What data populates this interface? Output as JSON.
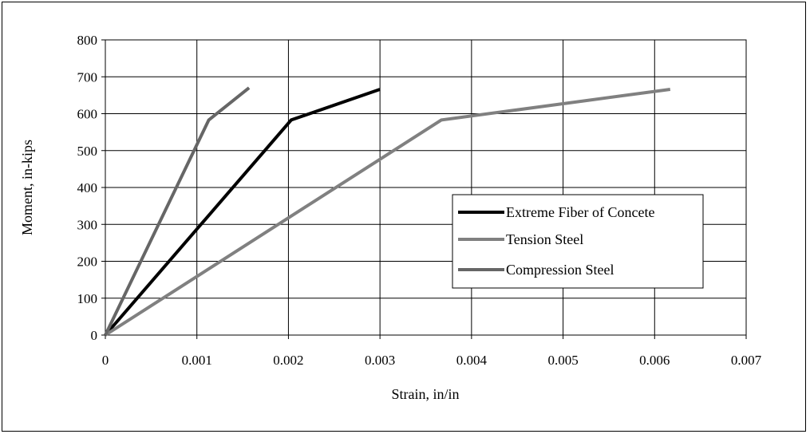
{
  "chart_data": {
    "type": "line",
    "title": "",
    "xlabel": "Strain, in/in",
    "ylabel": "Moment, in-kips",
    "xlim": [
      0,
      0.007
    ],
    "ylim": [
      0,
      800
    ],
    "x_ticks": [
      "0",
      "0.001",
      "0.002",
      "0.003",
      "0.004",
      "0.005",
      "0.006",
      "0.007"
    ],
    "y_ticks": [
      "0",
      "100",
      "200",
      "300",
      "400",
      "500",
      "600",
      "700",
      "800"
    ],
    "grid": true,
    "legend_position": "right",
    "series": [
      {
        "name": "Extreme Fiber of Concete",
        "color": "#000000",
        "x": [
          0,
          0.00203,
          0.003
        ],
        "y": [
          0,
          583,
          666
        ]
      },
      {
        "name": "Tension Steel",
        "color": "#808080",
        "x": [
          0,
          0.00367,
          0.00617
        ],
        "y": [
          0,
          583,
          666
        ]
      },
      {
        "name": "Compression Steel",
        "color": "#666666",
        "x": [
          0,
          0.00113,
          0.00157
        ],
        "y": [
          0,
          583,
          670
        ]
      }
    ]
  }
}
